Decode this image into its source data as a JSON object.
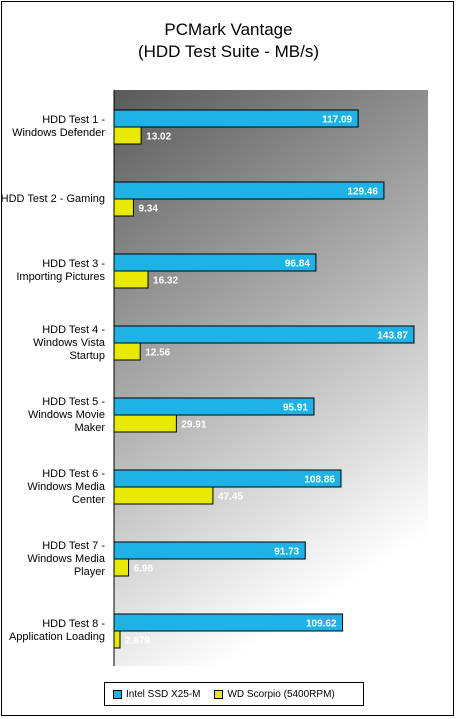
{
  "chart_data": {
    "type": "bar",
    "orientation": "horizontal",
    "title": "PCMark Vantage",
    "subtitle": "(HDD Test Suite - MB/s)",
    "categories": [
      "HDD Test 1 - Windows Defender",
      "HDD Test 2 - Gaming",
      "HDD Test 3 - Importing Pictures",
      "HDD Test 4 - Windows Vista Startup",
      "HDD Test 5 - Windows Movie Maker",
      "HDD Test 6 - Windows Media Center",
      "HDD Test 7 - Windows Media Player",
      "HDD Test 8 - Application Loading"
    ],
    "series": [
      {
        "name": "Intel SSD X25-M",
        "color": "#1eb3e6",
        "values": [
          117.09,
          129.46,
          96.84,
          143.87,
          95.91,
          108.86,
          91.73,
          109.62
        ],
        "labels": [
          "117.09",
          "129.46",
          "96.84",
          "143.87",
          "95.91",
          "108.86",
          "91.73",
          "109.62"
        ]
      },
      {
        "name": "WD Scorpio (5400RPM)",
        "color": "#e8e800",
        "values": [
          13.02,
          9.34,
          16.32,
          12.56,
          29.91,
          47.45,
          6.98,
          2.879
        ],
        "labels": [
          "13.02",
          "9.34",
          "16.32",
          "12.56",
          "29.91",
          "47.45",
          "6.98",
          "2.879"
        ]
      }
    ],
    "xlim": [
      0,
      160
    ],
    "grid": false,
    "legend_position": "bottom",
    "plot_background": "gradient dark-gray to white",
    "data_label_color": "#ffffff"
  }
}
